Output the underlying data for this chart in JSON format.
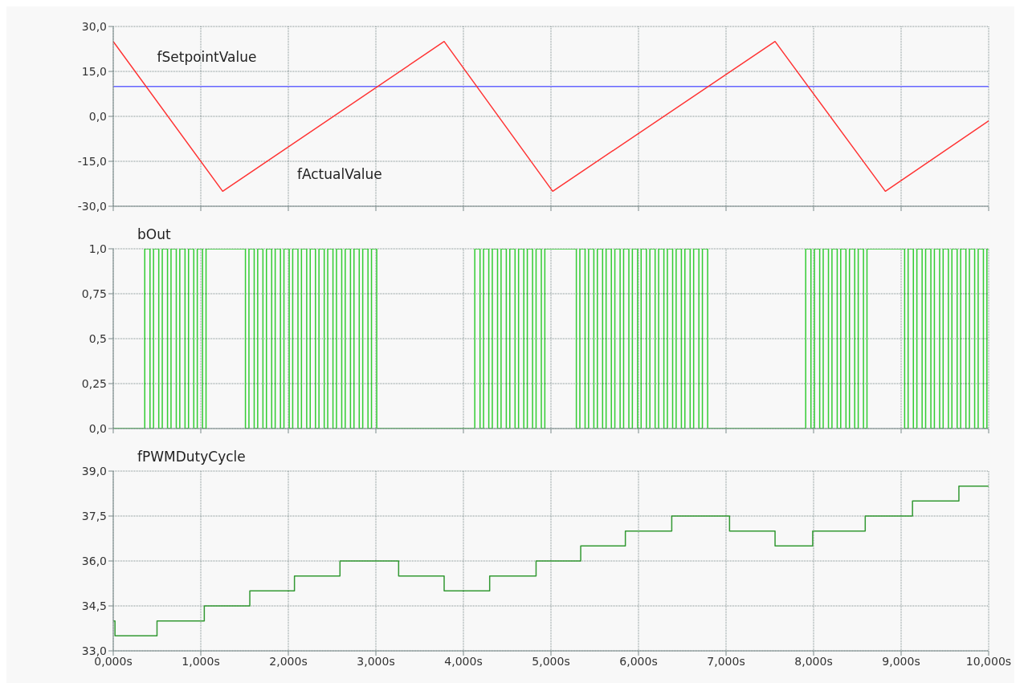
{
  "chart_data": [
    {
      "type": "line",
      "xlim": [
        0,
        10
      ],
      "xticks": [
        0,
        1,
        2,
        3,
        4,
        5,
        6,
        7,
        8,
        9,
        10
      ],
      "ylim": [
        -30,
        30
      ],
      "yticks": [
        {
          "value": -30,
          "label": "-30,0"
        },
        {
          "value": -15,
          "label": "-15,0"
        },
        {
          "value": 0,
          "label": "0,0"
        },
        {
          "value": 15,
          "label": "15,0"
        },
        {
          "value": 30,
          "label": "30,0"
        }
      ],
      "tick_labels": "y",
      "grid": true,
      "series": [
        {
          "name": "fSetpointValue",
          "color": "#6666ff",
          "x": [
            0,
            10
          ],
          "values": [
            10,
            10
          ]
        },
        {
          "name": "fActualValue",
          "color": "#ff3333",
          "x": [
            0,
            1.25,
            3.78,
            5.02,
            7.56,
            8.82,
            10
          ],
          "values": [
            25,
            -25,
            25,
            -25,
            25,
            -25,
            -1.5
          ]
        }
      ]
    },
    {
      "type": "step",
      "xlim": [
        0,
        10
      ],
      "xticks": [
        0,
        1,
        2,
        3,
        4,
        5,
        6,
        7,
        8,
        9,
        10
      ],
      "ylim": [
        0,
        1
      ],
      "yticks": [
        {
          "value": 0,
          "label": "0,0"
        },
        {
          "value": 0.25,
          "label": "0,25"
        },
        {
          "value": 0.5,
          "label": "0,5"
        },
        {
          "value": 0.75,
          "label": "0,75"
        },
        {
          "value": 1,
          "label": "1,0"
        }
      ],
      "tick_labels": "y",
      "grid": true,
      "series": [
        {
          "name": "bOut",
          "color": "#33cc33",
          "x": [
            0,
            0.36,
            0.42,
            0.46,
            0.52,
            0.56,
            0.62,
            0.66,
            0.72,
            0.76,
            0.82,
            0.86,
            0.92,
            0.96,
            1.02,
            1.06,
            1.51,
            1.55,
            1.61,
            1.65,
            1.71,
            1.75,
            1.81,
            1.85,
            1.91,
            1.95,
            2.01,
            2.05,
            2.11,
            2.15,
            2.21,
            2.25,
            2.31,
            2.35,
            2.41,
            2.45,
            2.51,
            2.55,
            2.61,
            2.65,
            2.71,
            2.75,
            2.81,
            2.85,
            2.91,
            2.95,
            3.01,
            4.13,
            4.19,
            4.23,
            4.29,
            4.33,
            4.39,
            4.43,
            4.49,
            4.53,
            4.59,
            4.63,
            4.69,
            4.73,
            4.79,
            4.83,
            4.89,
            4.93,
            5.29,
            5.33,
            5.39,
            5.43,
            5.49,
            5.53,
            5.59,
            5.63,
            5.69,
            5.73,
            5.79,
            5.83,
            5.89,
            5.93,
            5.99,
            6.03,
            6.09,
            6.13,
            6.19,
            6.23,
            6.29,
            6.33,
            6.39,
            6.43,
            6.49,
            6.53,
            6.59,
            6.63,
            6.69,
            6.73,
            6.79,
            7.91,
            7.97,
            8.01,
            8.07,
            8.11,
            8.17,
            8.21,
            8.27,
            8.31,
            8.37,
            8.41,
            8.47,
            8.51,
            8.57,
            8.61,
            9.04,
            9.08,
            9.14,
            9.18,
            9.24,
            9.28,
            9.34,
            9.38,
            9.44,
            9.48,
            9.54,
            9.58,
            9.64,
            9.68,
            9.74,
            9.78,
            9.84,
            9.88,
            9.94,
            9.98,
            10
          ],
          "values": [
            0,
            1,
            0,
            1,
            0,
            1,
            0,
            1,
            0,
            1,
            0,
            1,
            0,
            1,
            0,
            1,
            0,
            1,
            0,
            1,
            0,
            1,
            0,
            1,
            0,
            1,
            0,
            1,
            0,
            1,
            0,
            1,
            0,
            1,
            0,
            1,
            0,
            1,
            0,
            1,
            0,
            1,
            0,
            1,
            0,
            1,
            0,
            1,
            0,
            1,
            0,
            1,
            0,
            1,
            0,
            1,
            0,
            1,
            0,
            1,
            0,
            1,
            0,
            1,
            0,
            1,
            0,
            1,
            0,
            1,
            0,
            1,
            0,
            1,
            0,
            1,
            0,
            1,
            0,
            1,
            0,
            1,
            0,
            1,
            0,
            1,
            0,
            1,
            0,
            1,
            0,
            1,
            0,
            1,
            0,
            1,
            0,
            1,
            0,
            1,
            0,
            1,
            0,
            1,
            0,
            1,
            0,
            1,
            0,
            1,
            0,
            1,
            0,
            1,
            0,
            1,
            0,
            1,
            0,
            1,
            0,
            1,
            0,
            1,
            0,
            1,
            0,
            1,
            0,
            1,
            1
          ]
        }
      ]
    },
    {
      "type": "step",
      "xlim": [
        0,
        10
      ],
      "xticks": [
        {
          "value": 0,
          "label": "0,000s"
        },
        {
          "value": 1,
          "label": "1,000s"
        },
        {
          "value": 2,
          "label": "2,000s"
        },
        {
          "value": 3,
          "label": "3,000s"
        },
        {
          "value": 4,
          "label": "4,000s"
        },
        {
          "value": 5,
          "label": "5,000s"
        },
        {
          "value": 6,
          "label": "6,000s"
        },
        {
          "value": 7,
          "label": "7,000s"
        },
        {
          "value": 8,
          "label": "8,000s"
        },
        {
          "value": 9,
          "label": "9,000s"
        },
        {
          "value": 10,
          "label": "10,000s"
        }
      ],
      "ylim": [
        33,
        39
      ],
      "yticks": [
        {
          "value": 33,
          "label": "33,0"
        },
        {
          "value": 34.5,
          "label": "34,5"
        },
        {
          "value": 36,
          "label": "36,0"
        },
        {
          "value": 37.5,
          "label": "37,5"
        },
        {
          "value": 39,
          "label": "39,0"
        }
      ],
      "grid": true,
      "series": [
        {
          "name": "fPWMDutyCycle",
          "color": "#339933",
          "x": [
            0,
            0.02,
            0.5,
            1.04,
            1.56,
            2.07,
            2.59,
            3.26,
            3.78,
            4.3,
            4.83,
            5.34,
            5.85,
            6.38,
            7.04,
            7.56,
            7.99,
            8.59,
            9.13,
            9.66,
            10
          ],
          "values": [
            34,
            33.5,
            34,
            34.5,
            35,
            35.5,
            36,
            35.5,
            35,
            35.5,
            36,
            36.5,
            37,
            37.5,
            37,
            36.5,
            37,
            37.5,
            38,
            38.5,
            38.5
          ]
        }
      ]
    }
  ]
}
